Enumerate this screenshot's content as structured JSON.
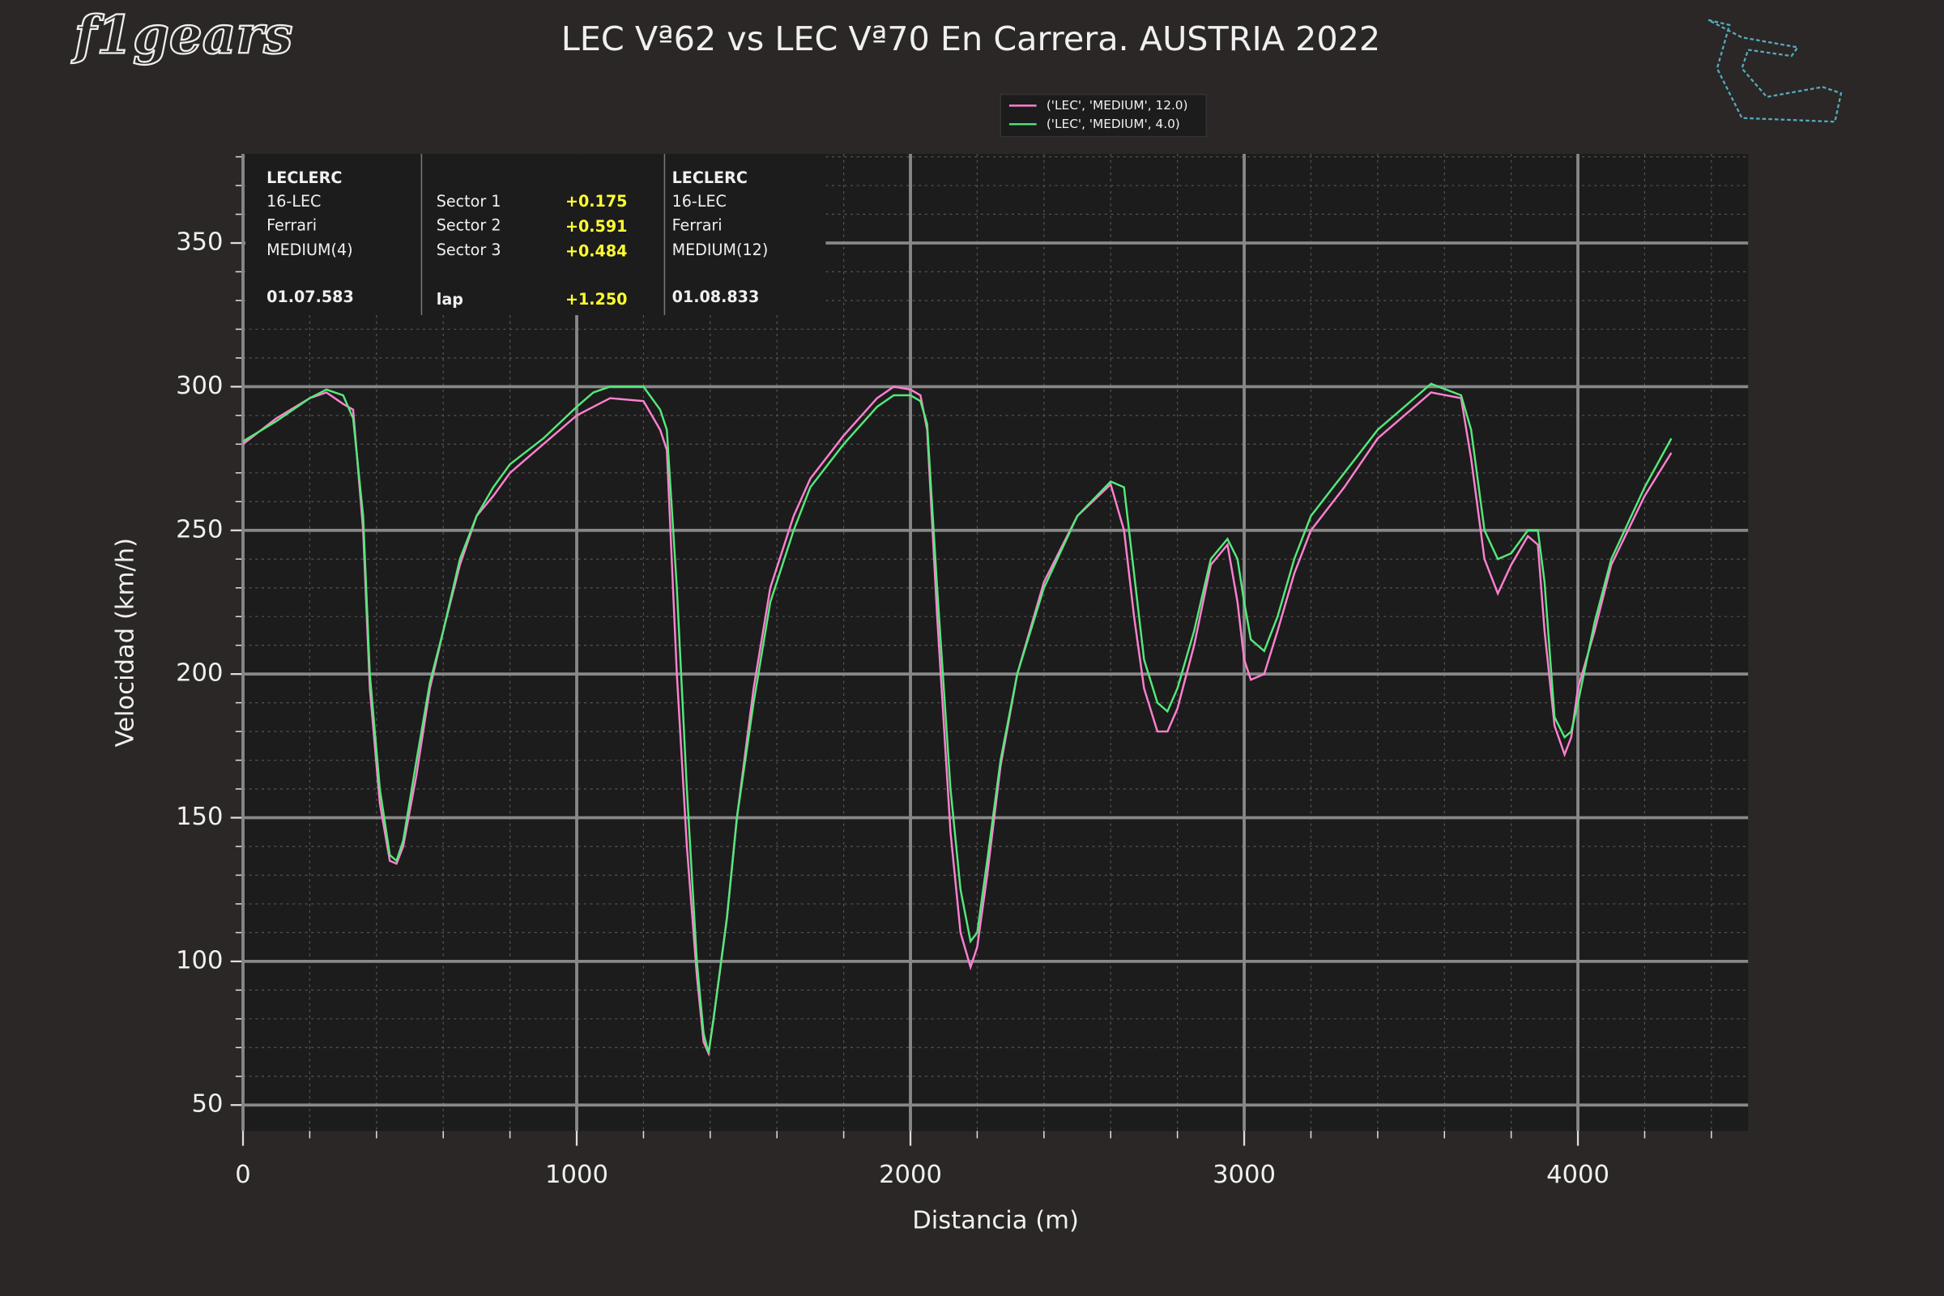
{
  "logo": "f1gears",
  "info_box": {
    "left": {
      "driver": "LECLERC",
      "code": "16-LEC",
      "team": "Ferrari",
      "tyre": "MEDIUM(4)",
      "time": "01.07.583"
    },
    "sectors": [
      {
        "label": "Sector 1",
        "delta": "+0.175"
      },
      {
        "label": "Sector 2",
        "delta": "+0.591"
      },
      {
        "label": "Sector 3",
        "delta": "+0.484"
      },
      {
        "label": "lap",
        "delta": "+1.250"
      }
    ],
    "right": {
      "driver": "LECLERC",
      "code": "16-LEC",
      "team": "Ferrari",
      "tyre": "MEDIUM(12)",
      "time": "01.08.833"
    }
  },
  "chart_data": {
    "type": "line",
    "title": "LEC Vª62 vs LEC Vª70 En Carrera. AUSTRIA 2022",
    "xlabel": "Distancia (m)",
    "ylabel": "Velocidad (km/h)",
    "x": [
      0,
      100,
      200,
      250,
      300,
      330,
      360,
      380,
      410,
      440,
      460,
      480,
      520,
      560,
      600,
      650,
      700,
      750,
      800,
      900,
      1000,
      1050,
      1100,
      1200,
      1250,
      1270,
      1300,
      1330,
      1360,
      1380,
      1395,
      1410,
      1450,
      1480,
      1530,
      1580,
      1650,
      1700,
      1800,
      1900,
      1950,
      2000,
      2030,
      2050,
      2080,
      2120,
      2150,
      2180,
      2200,
      2230,
      2270,
      2320,
      2400,
      2500,
      2600,
      2640,
      2670,
      2700,
      2740,
      2770,
      2800,
      2850,
      2900,
      2950,
      2980,
      3000,
      3020,
      3060,
      3100,
      3150,
      3200,
      3300,
      3400,
      3500,
      3560,
      3650,
      3680,
      3720,
      3760,
      3800,
      3850,
      3880,
      3900,
      3930,
      3960,
      3980,
      4000,
      4050,
      4100,
      4200,
      4280
    ],
    "series": [
      {
        "name": "('LEC', 'MEDIUM', 12.0)",
        "color": "#ff80d0",
        "values": [
          280,
          289,
          296,
          298,
          294,
          292,
          250,
          195,
          155,
          135,
          134,
          140,
          165,
          195,
          215,
          238,
          255,
          262,
          270,
          280,
          290,
          293,
          296,
          295,
          285,
          278,
          200,
          140,
          95,
          72,
          68,
          80,
          115,
          150,
          195,
          230,
          255,
          268,
          283,
          296,
          300,
          299,
          297,
          285,
          220,
          145,
          110,
          98,
          105,
          130,
          168,
          200,
          232,
          255,
          266,
          250,
          220,
          195,
          180,
          180,
          188,
          210,
          238,
          245,
          225,
          205,
          198,
          200,
          215,
          235,
          250,
          265,
          282,
          292,
          298,
          296,
          275,
          240,
          228,
          238,
          248,
          245,
          215,
          182,
          172,
          178,
          195,
          215,
          238,
          262,
          277
        ]
      },
      {
        "name": "('LEC', 'MEDIUM', 4.0)",
        "color": "#55e87a",
        "values": [
          281,
          288,
          296,
          299,
          297,
          289,
          255,
          200,
          160,
          137,
          135,
          142,
          170,
          197,
          215,
          240,
          255,
          265,
          273,
          282,
          293,
          298,
          300,
          300,
          292,
          285,
          230,
          160,
          100,
          75,
          68,
          80,
          115,
          150,
          190,
          225,
          250,
          265,
          280,
          293,
          297,
          297,
          295,
          287,
          230,
          160,
          125,
          107,
          110,
          135,
          170,
          200,
          230,
          255,
          267,
          265,
          235,
          205,
          190,
          187,
          195,
          215,
          240,
          247,
          240,
          225,
          212,
          208,
          220,
          240,
          255,
          270,
          285,
          295,
          301,
          297,
          285,
          250,
          240,
          242,
          250,
          250,
          232,
          185,
          178,
          180,
          190,
          218,
          240,
          265,
          282
        ]
      }
    ],
    "xlim": [
      0,
      4510
    ],
    "ylim": [
      41,
      381
    ],
    "xticks": [
      0,
      1000,
      2000,
      3000,
      4000
    ],
    "yticks": [
      50,
      100,
      150,
      200,
      250,
      300,
      350
    ],
    "grid": true,
    "legend": "upper center"
  }
}
